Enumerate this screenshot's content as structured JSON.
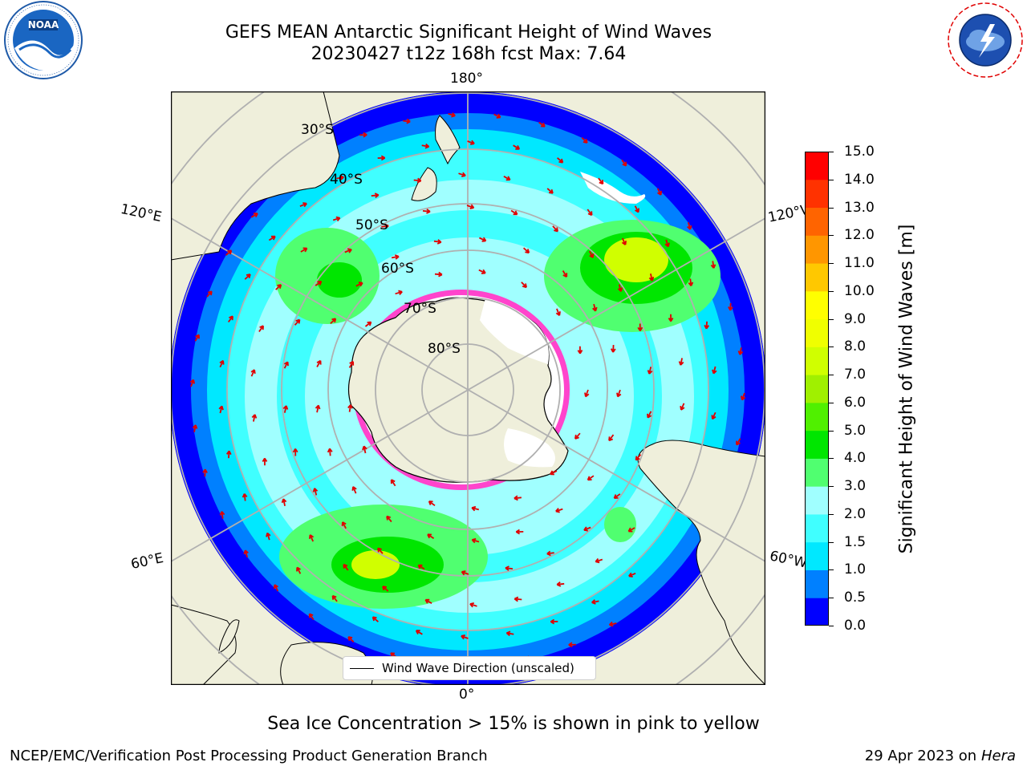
{
  "title": {
    "line1": "GEFS MEAN Antarctic Significant Height of Wind Waves",
    "line2": "20230427 t12z 168h fcst   Max: 7.64"
  },
  "logos": {
    "left": "noaa-logo",
    "right": "national-weather-service-logo"
  },
  "map": {
    "projection": "south-polar-stereographic",
    "lon_labels": {
      "top": "180°",
      "bottom": "0°",
      "left_upper": "120°E",
      "left_lower": "60°E",
      "right_upper": "120°W",
      "right_lower": "60°W"
    },
    "lat_labels": [
      "30°S",
      "40°S",
      "50°S",
      "60°S",
      "70°S",
      "80°S"
    ],
    "legend_label": "Wind Wave Direction (unscaled)",
    "colors": {
      "land": "#efefdb",
      "ice_pink": "#ff44cc",
      "arrow": "#ff0000",
      "grid": "#b0b0b0"
    }
  },
  "colorbar": {
    "label": "Significant Height of Wind Waves [m]",
    "ticks": [
      "0.0",
      "0.5",
      "1.0",
      "1.5",
      "2.0",
      "3.0",
      "4.0",
      "5.0",
      "6.0",
      "7.0",
      "8.0",
      "9.0",
      "10.0",
      "11.0",
      "12.0",
      "13.0",
      "14.0",
      "15.0"
    ],
    "colors": [
      "#0000ff",
      "#0080ff",
      "#00e8ff",
      "#40ffff",
      "#a0ffff",
      "#50ff70",
      "#00e600",
      "#50f000",
      "#a0f000",
      "#d0ff00",
      "#f0ff00",
      "#ffff00",
      "#ffc800",
      "#ff9600",
      "#ff6400",
      "#ff3200",
      "#ff0000"
    ]
  },
  "note": "Sea Ice Concentration > 15% is shown in pink to yellow",
  "footer": {
    "left": "NCEP/EMC/Verification Post Processing Product Generation Branch",
    "date": "29 Apr 2023 on ",
    "host": "Hera"
  }
}
